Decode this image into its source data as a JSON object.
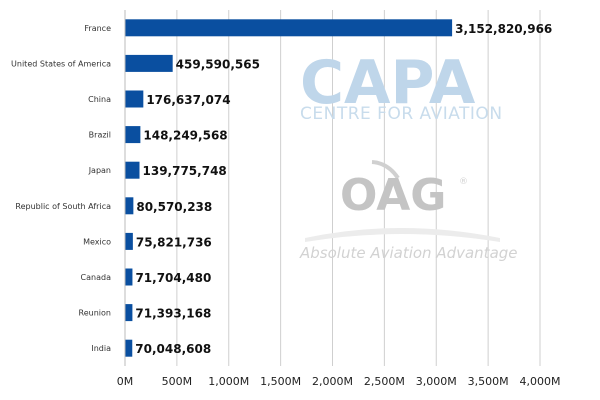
{
  "chart_data": {
    "type": "bar",
    "orientation": "horizontal",
    "categories": [
      "France",
      "United States of America",
      "China",
      "Brazil",
      "Japan",
      "Republic of South Africa",
      "Mexico",
      "Canada",
      "Reunion",
      "India"
    ],
    "values": [
      3152820966,
      459590565,
      176637074,
      148249568,
      139775748,
      80570238,
      75821736,
      71704480,
      71393168,
      70048608
    ],
    "value_labels": [
      "3,152,820,966",
      "459,590,565",
      "176,637,074",
      "148,249,568",
      "139,775,748",
      "80,570,238",
      "75,821,736",
      "71,704,480",
      "71,393,168",
      "70,048,608"
    ],
    "xlim": [
      0,
      4000000000
    ],
    "x_ticks": [
      0,
      500000000,
      1000000000,
      1500000000,
      2000000000,
      2500000000,
      3000000000,
      3500000000,
      4000000000
    ],
    "x_tick_labels": [
      "0M",
      "500M",
      "1,000M",
      "1,500M",
      "2,000M",
      "2,500M",
      "3,000M",
      "3,500M",
      "4,000M"
    ],
    "grid": "vertical",
    "bar_color": "#0a4fa0",
    "title": "",
    "xlabel": "",
    "ylabel": ""
  },
  "watermark": {
    "capa_text": "CAPA",
    "capa_subtitle": "CENTRE FOR AVIATION",
    "oag_text": "OAG",
    "oag_registered": "®",
    "oag_tagline": "Absolute Aviation Advantage"
  }
}
